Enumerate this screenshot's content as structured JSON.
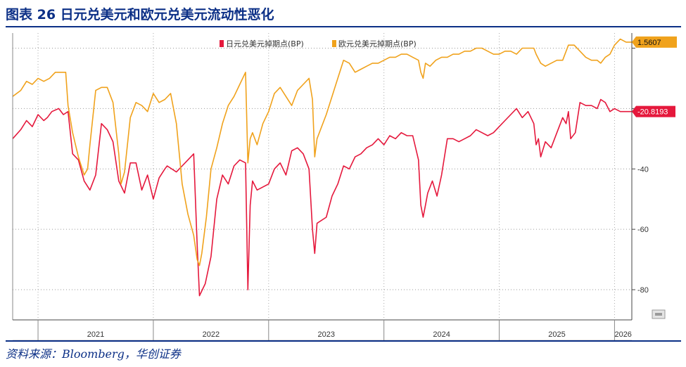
{
  "header": {
    "title": "图表 26  日元兑美元和欧元兑美元流动性恶化"
  },
  "footer": {
    "source": "资料来源：Bloomberg，华创证券"
  },
  "colors": {
    "jpy": "#e5183c",
    "eur": "#f0a21c",
    "title": "#0b2f86",
    "grid": "#999999",
    "axis": "#444444"
  },
  "chart_data": {
    "type": "line",
    "title": "",
    "xlabel": "",
    "ylabel": "",
    "x_tick_labels": [
      "2021",
      "2022",
      "2023",
      "2024",
      "2025",
      "2026"
    ],
    "x_range": [
      2020.78,
      2026.15
    ],
    "ylim": [
      -90,
      5
    ],
    "y_ticks": [
      0,
      -20,
      -40,
      -60,
      -80
    ],
    "y_tick_labels": [
      "",
      "",
      "-40",
      "-60",
      "-80"
    ],
    "grid": "horizontal-dotted",
    "legend_position": "top-center",
    "series": [
      {
        "name": "日元兑美元掉期点(BP)",
        "color": "#e5183c",
        "last_label": "-20.8193",
        "x": [
          2020.78,
          2020.85,
          2020.9,
          2020.95,
          2021.0,
          2021.05,
          2021.08,
          2021.12,
          2021.18,
          2021.22,
          2021.26,
          2021.3,
          2021.35,
          2021.4,
          2021.45,
          2021.5,
          2021.55,
          2021.6,
          2021.65,
          2021.7,
          2021.75,
          2021.8,
          2021.85,
          2021.9,
          2021.95,
          2022.0,
          2022.05,
          2022.1,
          2022.12,
          2022.2,
          2022.25,
          2022.3,
          2022.35,
          2022.38,
          2022.4,
          2022.45,
          2022.5,
          2022.55,
          2022.6,
          2022.65,
          2022.7,
          2022.75,
          2022.8,
          2022.82,
          2022.84,
          2022.86,
          2022.9,
          2023.0,
          2023.05,
          2023.1,
          2023.15,
          2023.2,
          2023.25,
          2023.3,
          2023.35,
          2023.38,
          2023.4,
          2023.42,
          2023.5,
          2023.55,
          2023.6,
          2023.65,
          2023.7,
          2023.75,
          2023.8,
          2023.85,
          2023.9,
          2023.95,
          2024.0,
          2024.05,
          2024.1,
          2024.15,
          2024.2,
          2024.25,
          2024.3,
          2024.32,
          2024.34,
          2024.36,
          2024.38,
          2024.42,
          2024.46,
          2024.5,
          2024.55,
          2024.6,
          2024.65,
          2024.7,
          2024.75,
          2024.8,
          2024.85,
          2024.9,
          2024.95,
          2025.0,
          2025.05,
          2025.1,
          2025.15,
          2025.2,
          2025.25,
          2025.3,
          2025.32,
          2025.34,
          2025.36,
          2025.4,
          2025.45,
          2025.5,
          2025.55,
          2025.58,
          2025.6,
          2025.62,
          2025.66,
          2025.7,
          2025.75,
          2025.8,
          2025.85,
          2025.88,
          2025.92,
          2025.96,
          2026.0,
          2026.05,
          2026.1,
          2026.15
        ],
        "values": [
          -30,
          -27,
          -24,
          -26,
          -22,
          -24,
          -23,
          -21,
          -20,
          -22,
          -21,
          -35,
          -37,
          -44,
          -47,
          -42,
          -25,
          -27,
          -31,
          -44,
          -48,
          -38,
          -38,
          -47,
          -42,
          -50,
          -43,
          -40,
          -39,
          -41,
          -39,
          -37,
          -35,
          -65,
          -82,
          -78,
          -69,
          -50,
          -42,
          -45,
          -39,
          -37,
          -38,
          -80,
          -52,
          -44,
          -47,
          -45,
          -40,
          -38,
          -42,
          -34,
          -33,
          -35,
          -40,
          -60,
          -68,
          -58,
          -56,
          -49,
          -45,
          -39,
          -40,
          -36,
          -35,
          -33,
          -32,
          -30,
          -32,
          -29,
          -30,
          -28,
          -29,
          -29,
          -37,
          -52,
          -56,
          -52,
          -48,
          -44,
          -49,
          -42,
          -30,
          -30,
          -31,
          -30,
          -29,
          -27,
          -28,
          -29,
          -28,
          -26,
          -24,
          -22,
          -20,
          -23,
          -21,
          -25,
          -32,
          -30,
          -36,
          -31,
          -33,
          -28,
          -23,
          -25,
          -21,
          -30,
          -28,
          -18,
          -19,
          -19,
          -20,
          -17,
          -18,
          -21,
          -20,
          -21,
          -21,
          -21
        ]
      },
      {
        "name": "欧元兑美元掉期点(BP)",
        "color": "#f0a21c",
        "last_label": "1.5607",
        "x": [
          2020.78,
          2020.85,
          2020.9,
          2020.95,
          2021.0,
          2021.05,
          2021.1,
          2021.15,
          2021.2,
          2021.24,
          2021.26,
          2021.3,
          2021.35,
          2021.4,
          2021.43,
          2021.45,
          2021.5,
          2021.55,
          2021.6,
          2021.65,
          2021.7,
          2021.72,
          2021.75,
          2021.8,
          2021.85,
          2021.9,
          2021.95,
          2022.0,
          2022.05,
          2022.1,
          2022.15,
          2022.2,
          2022.25,
          2022.3,
          2022.35,
          2022.38,
          2022.4,
          2022.42,
          2022.46,
          2022.5,
          2022.55,
          2022.6,
          2022.65,
          2022.7,
          2022.75,
          2022.8,
          2022.82,
          2022.84,
          2022.86,
          2022.9,
          2022.95,
          2023.0,
          2023.05,
          2023.1,
          2023.15,
          2023.2,
          2023.25,
          2023.3,
          2023.35,
          2023.38,
          2023.4,
          2023.42,
          2023.5,
          2023.55,
          2023.6,
          2023.65,
          2023.7,
          2023.75,
          2023.8,
          2023.85,
          2023.9,
          2023.95,
          2024.0,
          2024.05,
          2024.1,
          2024.15,
          2024.2,
          2024.25,
          2024.3,
          2024.32,
          2024.34,
          2024.36,
          2024.4,
          2024.45,
          2024.5,
          2024.55,
          2024.6,
          2024.65,
          2024.7,
          2024.75,
          2024.8,
          2024.85,
          2024.9,
          2024.95,
          2025.0,
          2025.05,
          2025.1,
          2025.15,
          2025.2,
          2025.25,
          2025.3,
          2025.32,
          2025.36,
          2025.4,
          2025.45,
          2025.5,
          2025.55,
          2025.6,
          2025.65,
          2025.7,
          2025.75,
          2025.8,
          2025.85,
          2025.88,
          2025.92,
          2025.96,
          2026.0,
          2026.05,
          2026.1,
          2026.15
        ],
        "values": [
          -16,
          -14,
          -11,
          -12,
          -10,
          -11,
          -10,
          -8,
          -8,
          -8,
          -19,
          -28,
          -36,
          -42,
          -40,
          -32,
          -14,
          -13,
          -13,
          -18,
          -35,
          -45,
          -41,
          -23,
          -18,
          -19,
          -21,
          -15,
          -18,
          -17,
          -15,
          -25,
          -45,
          -55,
          -62,
          -70,
          -72,
          -68,
          -56,
          -40,
          -33,
          -25,
          -19,
          -16,
          -12,
          -8,
          -38,
          -30,
          -28,
          -32,
          -25,
          -21,
          -15,
          -13,
          -16,
          -19,
          -14,
          -12,
          -10,
          -17,
          -36,
          -30,
          -22,
          -16,
          -10,
          -4,
          -5,
          -8,
          -7,
          -6,
          -5,
          -5,
          -4,
          -3,
          -3,
          -2,
          -2,
          -3,
          -4,
          -8,
          -10,
          -5,
          -6,
          -4,
          -3,
          -3,
          -2,
          -2,
          -1,
          -1,
          0,
          0,
          -1,
          -2,
          -2,
          -1,
          -1,
          -2,
          0,
          0,
          0,
          -2,
          -5,
          -6,
          -5,
          -4,
          -4,
          1,
          1,
          -1,
          -3,
          -4,
          -4,
          -5,
          -3,
          -2,
          1,
          3,
          2,
          2
        ]
      }
    ]
  }
}
